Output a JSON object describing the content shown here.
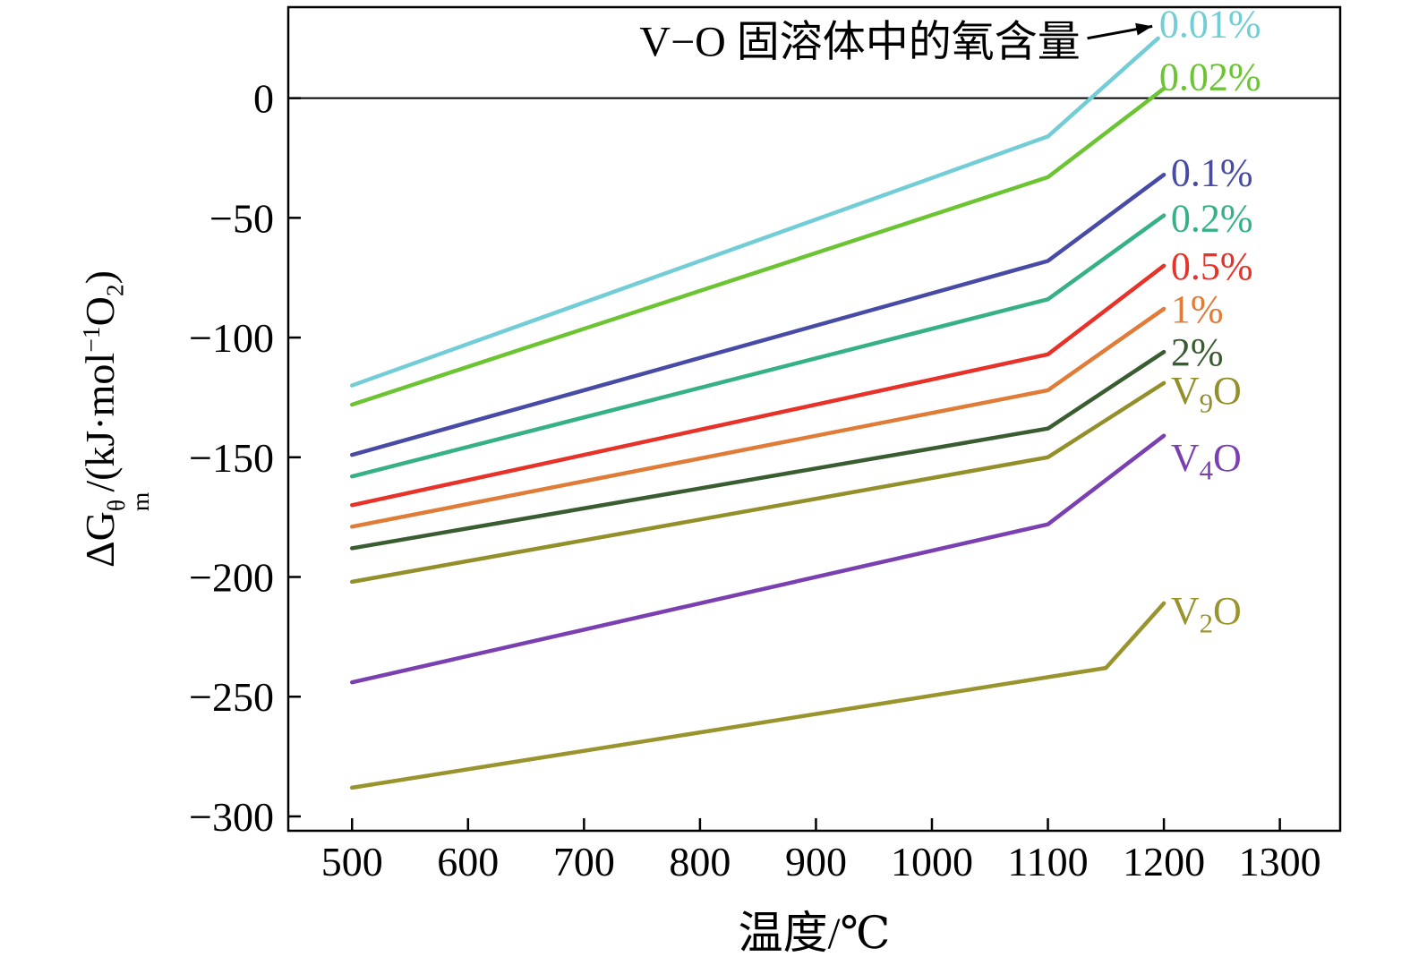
{
  "chart_data": {
    "type": "line",
    "title": "",
    "xlabel": "温度/℃",
    "ylabel": "ΔG_m^θ/(kJ·mol^−1O_2)",
    "ylabel_parts": [
      {
        "text": "ΔG"
      },
      {
        "sup": "θ",
        "sub": "m"
      },
      {
        "text": "/(kJ·mol"
      },
      {
        "sup": "−1"
      },
      {
        "text": "O"
      },
      {
        "sub": "2"
      },
      {
        "text": ")"
      }
    ],
    "xlim": [
      445,
      1352
    ],
    "ylim": [
      -306,
      38
    ],
    "x_ticks": [
      500,
      600,
      700,
      800,
      900,
      1000,
      1100,
      1200,
      1300
    ],
    "y_ticks": [
      0,
      -50,
      -100,
      -150,
      -200,
      -250,
      -300
    ],
    "grid": false,
    "frame": true,
    "zero_line": true,
    "legend_position": "right-inline-labels",
    "annotation": {
      "text": "V−O 固溶体中的氧含量",
      "text_pos": [
        1128,
        24
      ],
      "arrow_from": [
        1134,
        25
      ],
      "arrow_to": [
        1190,
        30
      ]
    },
    "series": [
      {
        "name": "0.01%",
        "name_parts": [
          {
            "text": "0.01%"
          }
        ],
        "color": "#72cdd6",
        "x": [
          500,
          1100,
          1195
        ],
        "y": [
          -120,
          -16,
          25
        ],
        "label_pos": [
          1196,
          31
        ]
      },
      {
        "name": "0.02%",
        "name_parts": [
          {
            "text": "0.02%"
          }
        ],
        "color": "#6cc433",
        "x": [
          500,
          1100,
          1200
        ],
        "y": [
          -128,
          -33,
          4
        ],
        "label_pos": [
          1196,
          9
        ]
      },
      {
        "name": "0.1%",
        "name_parts": [
          {
            "text": "0.1%"
          }
        ],
        "color": "#474ba5",
        "x": [
          500,
          1100,
          1200
        ],
        "y": [
          -149,
          -68,
          -32
        ],
        "label_pos": [
          1206,
          -31
        ]
      },
      {
        "name": "0.2%",
        "name_parts": [
          {
            "text": "0.2%"
          }
        ],
        "color": "#35b185",
        "x": [
          500,
          1100,
          1200
        ],
        "y": [
          -158,
          -84,
          -49
        ],
        "label_pos": [
          1206,
          -50
        ]
      },
      {
        "name": "0.5%",
        "name_parts": [
          {
            "text": "0.5%"
          }
        ],
        "color": "#e63229",
        "x": [
          500,
          1100,
          1200
        ],
        "y": [
          -170,
          -107,
          -70
        ],
        "label_pos": [
          1206,
          -70
        ]
      },
      {
        "name": "1%",
        "name_parts": [
          {
            "text": "1%"
          }
        ],
        "color": "#e07b38",
        "x": [
          500,
          1100,
          1200
        ],
        "y": [
          -179,
          -122,
          -88
        ],
        "label_pos": [
          1206,
          -88
        ]
      },
      {
        "name": "2%",
        "name_parts": [
          {
            "text": "2%"
          }
        ],
        "color": "#3a5c31",
        "x": [
          500,
          1100,
          1200
        ],
        "y": [
          -188,
          -138,
          -106
        ],
        "label_pos": [
          1206,
          -106
        ]
      },
      {
        "name": "V9O",
        "name_parts": [
          {
            "text": "V"
          },
          {
            "sub": "9"
          },
          {
            "text": "O"
          }
        ],
        "color": "#93902c",
        "x": [
          500,
          1100,
          1200
        ],
        "y": [
          -202,
          -150,
          -119
        ],
        "label_pos": [
          1206,
          -122
        ]
      },
      {
        "name": "V4O",
        "name_parts": [
          {
            "text": "V"
          },
          {
            "sub": "4"
          },
          {
            "text": "O"
          }
        ],
        "color": "#7a3fb0",
        "x": [
          500,
          1100,
          1200
        ],
        "y": [
          -244,
          -178,
          -141
        ],
        "label_pos": [
          1206,
          -150
        ]
      },
      {
        "name": "V2O",
        "name_parts": [
          {
            "text": "V"
          },
          {
            "sub": "2"
          },
          {
            "text": "O"
          }
        ],
        "color": "#9a942e",
        "x": [
          500,
          1150,
          1200
        ],
        "y": [
          -288,
          -238,
          -211
        ],
        "label_pos": [
          1206,
          -214
        ]
      }
    ]
  }
}
